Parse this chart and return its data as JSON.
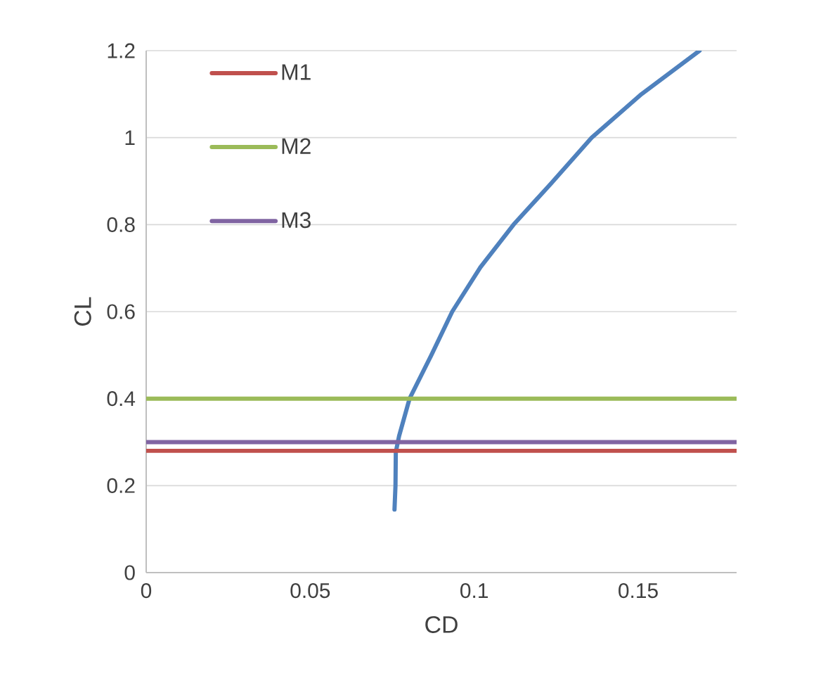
{
  "chart_data": {
    "type": "line",
    "xlabel": "CD",
    "ylabel": "CL",
    "xlim": [
      0,
      0.18
    ],
    "xticks": [
      0,
      0.05,
      0.1,
      0.15
    ],
    "ylim": [
      0,
      1.2
    ],
    "yticks": [
      0,
      0.2,
      0.4,
      0.6,
      0.8,
      1,
      1.2
    ],
    "grid": "y",
    "legend": "top left",
    "marker": "none",
    "line_style": "solid",
    "series": [
      {
        "color": "#4f81bd",
        "x": [
          0.0757,
          0.076,
          0.0761,
          0.0771,
          0.0803,
          0.0868,
          0.0933,
          0.1019,
          0.112,
          0.1236,
          0.1358,
          0.151,
          0.1687
        ],
        "values": [
          0.145,
          0.2,
          0.277,
          0.314,
          0.4,
          0.498,
          0.6,
          0.702,
          0.8,
          0.896,
          1.0,
          1.1,
          1.2
        ]
      },
      {
        "name": "M1",
        "color": "#c0504d",
        "x": [
          0,
          0.18
        ],
        "values": [
          0.28,
          0.28
        ]
      },
      {
        "name": "M2",
        "color": "#9bbb59",
        "x": [
          0,
          0.18
        ],
        "values": [
          0.4,
          0.4
        ]
      },
      {
        "name": "M3",
        "color": "#8064a2",
        "x": [
          0,
          0.18
        ],
        "values": [
          0.3,
          0.3
        ]
      }
    ]
  }
}
